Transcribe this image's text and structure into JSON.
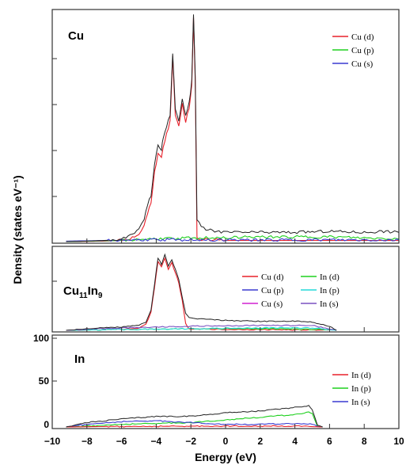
{
  "chart_data": {
    "type": "line",
    "xlabel": "Energy (eV)",
    "ylabel": "Density (states eV⁻¹)",
    "xlim": [
      -10,
      10
    ],
    "xticks": [
      "−10",
      "−8",
      "−6",
      "−4",
      "−2",
      "0",
      "2",
      "4",
      "6",
      "8",
      "10"
    ],
    "colors": {
      "total": "#222222",
      "cu_d": "#e8202a",
      "cu_p": "#1fd01f",
      "cu_s": "#3a3ad0",
      "in_p_mid": "#22d8d8",
      "cu_s_mid": "#d020d0",
      "in_s_mid": "#7a50c0"
    },
    "panels": [
      {
        "label": "Cu",
        "ylim": [
          0,
          1
        ],
        "legend": [
          "Cu (d)",
          "Cu (p)",
          "Cu (s)"
        ],
        "series": {
          "total": [
            [
              -9.2,
              0.0
            ],
            [
              -8,
              0.002
            ],
            [
              -7,
              0.005
            ],
            [
              -6,
              0.012
            ],
            [
              -5.5,
              0.025
            ],
            [
              -5,
              0.05
            ],
            [
              -4.7,
              0.1
            ],
            [
              -4.5,
              0.16
            ],
            [
              -4.3,
              0.2
            ],
            [
              -4.1,
              0.33
            ],
            [
              -3.9,
              0.42
            ],
            [
              -3.7,
              0.4
            ],
            [
              -3.6,
              0.45
            ],
            [
              -3.4,
              0.5
            ],
            [
              -3.2,
              0.55
            ],
            [
              -3.05,
              0.82
            ],
            [
              -2.9,
              0.58
            ],
            [
              -2.7,
              0.52
            ],
            [
              -2.5,
              0.62
            ],
            [
              -2.3,
              0.55
            ],
            [
              -2.1,
              0.6
            ],
            [
              -1.95,
              0.7
            ],
            [
              -1.85,
              0.99
            ],
            [
              -1.75,
              0.72
            ],
            [
              -1.65,
              0.1
            ],
            [
              -1.4,
              0.06
            ],
            [
              -1,
              0.05
            ],
            [
              0,
              0.04
            ],
            [
              2,
              0.04
            ],
            [
              4,
              0.04
            ],
            [
              6,
              0.045
            ],
            [
              8,
              0.04
            ],
            [
              9,
              0.045
            ],
            [
              10,
              0.04
            ]
          ],
          "Cu (d)": [
            [
              -9.2,
              0.0
            ],
            [
              -7,
              0.002
            ],
            [
              -6,
              0.006
            ],
            [
              -5.5,
              0.012
            ],
            [
              -5,
              0.03
            ],
            [
              -4.7,
              0.07
            ],
            [
              -4.5,
              0.12
            ],
            [
              -4.3,
              0.17
            ],
            [
              -4.1,
              0.3
            ],
            [
              -3.9,
              0.38
            ],
            [
              -3.7,
              0.36
            ],
            [
              -3.6,
              0.41
            ],
            [
              -3.4,
              0.47
            ],
            [
              -3.2,
              0.52
            ],
            [
              -3.05,
              0.8
            ],
            [
              -2.9,
              0.55
            ],
            [
              -2.7,
              0.5
            ],
            [
              -2.5,
              0.6
            ],
            [
              -2.3,
              0.52
            ],
            [
              -2.1,
              0.58
            ],
            [
              -1.95,
              0.68
            ],
            [
              -1.85,
              0.97
            ],
            [
              -1.75,
              0.7
            ],
            [
              -1.65,
              0.02
            ],
            [
              -1.4,
              0.01
            ],
            [
              0,
              0.005
            ],
            [
              10,
              0.005
            ]
          ],
          "Cu (p)": [
            [
              -9.2,
              0.0
            ],
            [
              -6,
              0.005
            ],
            [
              -4,
              0.012
            ],
            [
              -2,
              0.015
            ],
            [
              0,
              0.018
            ],
            [
              2,
              0.02
            ],
            [
              4,
              0.02
            ],
            [
              6,
              0.02
            ],
            [
              8,
              0.015
            ],
            [
              10,
              0.012
            ]
          ],
          "Cu (s)": [
            [
              -9.2,
              0.002
            ],
            [
              -6,
              0.006
            ],
            [
              -4,
              0.008
            ],
            [
              -2,
              0.008
            ],
            [
              0,
              0.007
            ],
            [
              4,
              0.007
            ],
            [
              10,
              0.006
            ]
          ]
        }
      },
      {
        "label": "Cu",
        "label_sub1": "11",
        "label_mid": "In",
        "label_sub2": "9",
        "ylim": [
          0,
          1
        ],
        "legend": [
          "Cu (d)",
          "Cu (p)",
          "Cu (s)",
          "In (d)",
          "In (p)",
          "In (s)"
        ],
        "series": {
          "total": [
            [
              -9.2,
              0.0
            ],
            [
              -8,
              0.02
            ],
            [
              -6,
              0.04
            ],
            [
              -5,
              0.06
            ],
            [
              -4.6,
              0.1
            ],
            [
              -4.3,
              0.25
            ],
            [
              -4.1,
              0.55
            ],
            [
              -3.9,
              0.88
            ],
            [
              -3.7,
              0.8
            ],
            [
              -3.5,
              0.92
            ],
            [
              -3.3,
              0.78
            ],
            [
              -3.1,
              0.86
            ],
            [
              -2.9,
              0.74
            ],
            [
              -2.7,
              0.62
            ],
            [
              -2.5,
              0.4
            ],
            [
              -2.3,
              0.2
            ],
            [
              -2.1,
              0.15
            ],
            [
              -1.5,
              0.14
            ],
            [
              0,
              0.12
            ],
            [
              2,
              0.11
            ],
            [
              4,
              0.11
            ],
            [
              5,
              0.1
            ],
            [
              6,
              0.05
            ],
            [
              6.4,
              0.0
            ]
          ],
          "Cu (d)": [
            [
              -9.2,
              0.0
            ],
            [
              -6,
              0.01
            ],
            [
              -5,
              0.03
            ],
            [
              -4.6,
              0.07
            ],
            [
              -4.3,
              0.22
            ],
            [
              -4.1,
              0.52
            ],
            [
              -3.9,
              0.84
            ],
            [
              -3.7,
              0.77
            ],
            [
              -3.5,
              0.88
            ],
            [
              -3.3,
              0.74
            ],
            [
              -3.1,
              0.82
            ],
            [
              -2.9,
              0.7
            ],
            [
              -2.7,
              0.58
            ],
            [
              -2.5,
              0.36
            ],
            [
              -2.3,
              0.08
            ],
            [
              -2.1,
              0.02
            ],
            [
              0,
              0.01
            ],
            [
              6,
              0.005
            ]
          ],
          "In (d)": [
            [
              -9.2,
              0.0
            ],
            [
              -6,
              0.01
            ],
            [
              -2,
              0.02
            ],
            [
              2,
              0.02
            ],
            [
              6,
              0.01
            ]
          ],
          "In (p)": [
            [
              -9.2,
              0.0
            ],
            [
              -6,
              0.01
            ],
            [
              -2,
              0.02
            ],
            [
              2,
              0.03
            ],
            [
              5,
              0.03
            ],
            [
              6.4,
              0.0
            ]
          ],
          "In (s)": [
            [
              -9.2,
              0.0
            ],
            [
              -6,
              0.03
            ],
            [
              -2,
              0.05
            ],
            [
              2,
              0.06
            ],
            [
              5,
              0.06
            ],
            [
              6.4,
              0.0
            ]
          ]
        }
      },
      {
        "label": "In",
        "ylim": [
          0,
          100
        ],
        "yticks": [
          "0",
          "50",
          "100"
        ],
        "legend": [
          "In (d)",
          "In (p)",
          "In (s)"
        ],
        "series": {
          "total": [
            [
              -9.2,
              0.0
            ],
            [
              -9,
              1
            ],
            [
              -8,
              5
            ],
            [
              -6,
              9
            ],
            [
              -4,
              12
            ],
            [
              -2,
              12
            ],
            [
              0,
              16
            ],
            [
              2,
              18
            ],
            [
              4,
              22
            ],
            [
              4.8,
              24
            ],
            [
              5,
              20
            ],
            [
              5.3,
              2
            ],
            [
              5.6,
              0
            ]
          ],
          "In (p)": [
            [
              -9.2,
              0.0
            ],
            [
              -8,
              1
            ],
            [
              -6,
              3
            ],
            [
              -4,
              4
            ],
            [
              -2,
              5
            ],
            [
              0,
              8
            ],
            [
              2,
              11
            ],
            [
              4,
              14
            ],
            [
              4.8,
              17
            ],
            [
              5,
              15
            ],
            [
              5.3,
              1
            ],
            [
              5.6,
              0
            ]
          ],
          "In (s)": [
            [
              -9.2,
              0.0
            ],
            [
              -8,
              3
            ],
            [
              -6,
              6
            ],
            [
              -4,
              7
            ],
            [
              -2,
              5
            ],
            [
              0,
              3
            ],
            [
              2,
              3
            ],
            [
              4,
              4
            ],
            [
              5,
              3
            ],
            [
              5.3,
              0.5
            ],
            [
              5.6,
              0
            ]
          ],
          "In (d)": [
            [
              -9.2,
              0.0
            ],
            [
              -7,
              0.5
            ],
            [
              0,
              1
            ],
            [
              4,
              1
            ],
            [
              5.6,
              0
            ]
          ]
        }
      }
    ]
  }
}
